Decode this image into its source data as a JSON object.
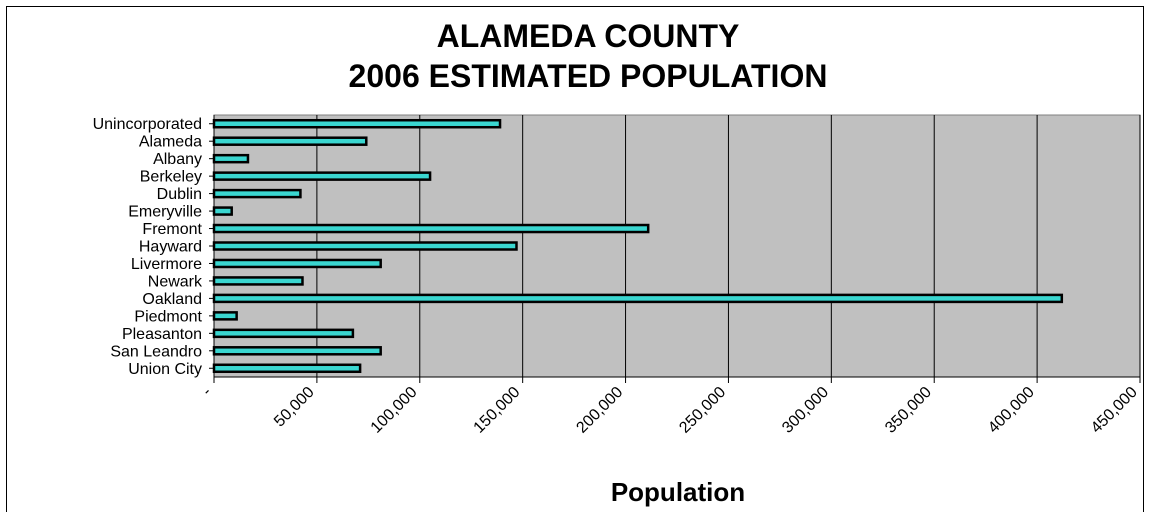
{
  "chart_data": {
    "type": "bar",
    "orientation": "horizontal",
    "title": "ALAMEDA COUNTY",
    "subtitle": "2006 ESTIMATED POPULATION",
    "xlabel": "Population",
    "ylabel": "",
    "xlim": [
      0,
      450000
    ],
    "tick_values": [
      0,
      50000,
      100000,
      150000,
      200000,
      250000,
      300000,
      350000,
      400000,
      450000
    ],
    "tick_labels": [
      "-",
      "50,000",
      "100,000",
      "150,000",
      "200,000",
      "250,000",
      "300,000",
      "350,000",
      "400,000",
      "450,000"
    ],
    "categories": [
      "Unincorporated",
      "Alameda",
      "Albany",
      "Berkeley",
      "Dublin",
      "Emeryville",
      "Fremont",
      "Hayward",
      "Livermore",
      "Newark",
      "Oakland",
      "Piedmont",
      "Pleasanton",
      "San Leandro",
      "Union City"
    ],
    "values": [
      139000,
      74000,
      16500,
      105000,
      42000,
      8600,
      211000,
      147000,
      81000,
      43000,
      412000,
      11000,
      67500,
      81000,
      71000
    ],
    "grid": true,
    "legend": "none",
    "colors": {
      "plot_background": "#c0c0c0",
      "bar_fill": "#3ad6d0",
      "bar_edge": "#000000",
      "gridline": "#000000"
    }
  }
}
